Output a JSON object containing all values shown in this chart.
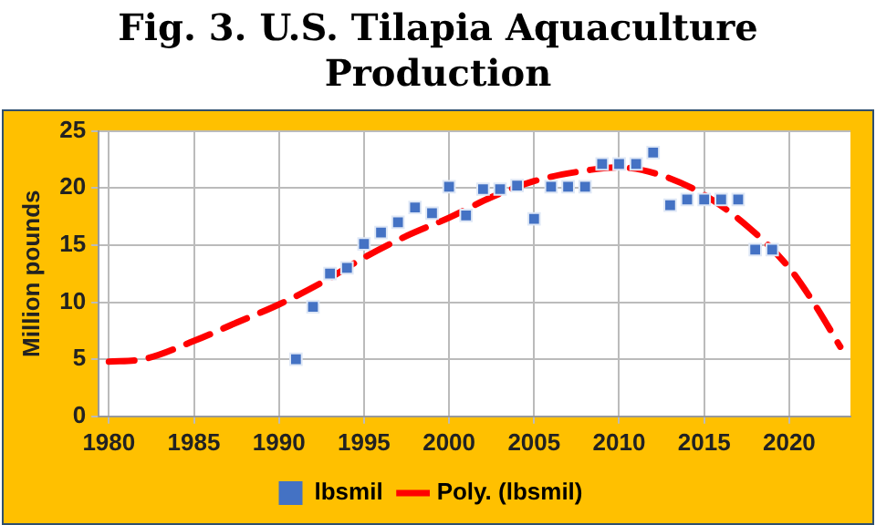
{
  "chart_data": {
    "type": "scatter",
    "title": "Fig. 3. U.S. Tilapia Aquaculture Production",
    "ylabel": "Million pounds",
    "xlim": [
      1979.4,
      2023.6
    ],
    "xticks": [
      1980,
      1985,
      1990,
      1995,
      2000,
      2005,
      2010,
      2015,
      2020
    ],
    "ylim": [
      0,
      25
    ],
    "yticks": [
      0,
      5,
      10,
      15,
      20,
      25
    ],
    "grid": true,
    "legend": "bottom",
    "line_style": "dashed",
    "series": [
      {
        "name": "lbsmil",
        "type": "scatter",
        "marker": "square",
        "color": "#4472c4",
        "x": [
          1991,
          1992,
          1993,
          1994,
          1995,
          1996,
          1997,
          1998,
          1999,
          2000,
          2001,
          2002,
          2003,
          2004,
          2005,
          2006,
          2007,
          2008,
          2009,
          2010,
          2011,
          2012,
          2013,
          2014,
          2015,
          2016,
          2017,
          2018,
          2019
        ],
        "values": [
          5.0,
          9.6,
          12.5,
          13.0,
          15.1,
          16.1,
          17.0,
          18.3,
          17.8,
          20.1,
          17.6,
          19.9,
          19.9,
          20.2,
          17.3,
          20.1,
          20.1,
          20.1,
          22.1,
          22.1,
          22.1,
          23.1,
          18.5,
          19.0,
          19.0,
          19.0,
          19.0,
          14.6,
          14.6
        ]
      },
      {
        "name": "Poly. (lbsmil)",
        "type": "line",
        "marker": "none",
        "color": "#ff0000",
        "x": [
          1980,
          1982,
          1985,
          1987.5,
          1990,
          1992.5,
          1995,
          1997.5,
          2000,
          2002.5,
          2005,
          2007.5,
          2010,
          2012.5,
          2015,
          2017.5,
          2020,
          2021.5,
          2023
        ],
        "values": [
          4.8,
          5.0,
          6.6,
          8.2,
          9.8,
          11.7,
          13.9,
          15.8,
          17.4,
          19.2,
          20.6,
          21.4,
          21.8,
          21.1,
          19.4,
          16.7,
          13.0,
          9.8,
          6.1
        ]
      }
    ]
  }
}
